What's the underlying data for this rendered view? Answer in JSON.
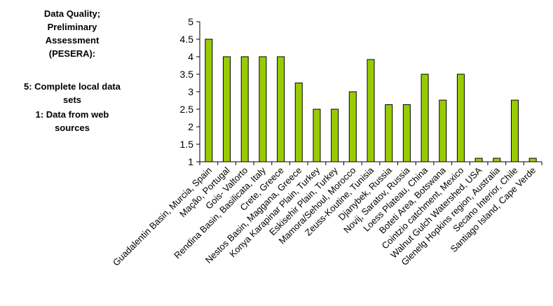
{
  "side_note": {
    "lines": [
      "Data Quality;",
      "Preliminary",
      "Assessment",
      "(PESERA):",
      "",
      "5: Complete local data",
      "sets",
      "1: Data from web",
      "sources"
    ]
  },
  "chart_data": {
    "type": "bar",
    "title": "",
    "xlabel": "",
    "ylabel": "",
    "ylim": [
      1,
      5
    ],
    "yticks": [
      "1",
      "1.5",
      "2",
      "2.5",
      "3",
      "3.5",
      "4",
      "4.5",
      "5"
    ],
    "grid": false,
    "legend": "none",
    "bar_color": "#99cc00",
    "categories": [
      "Guadalentin Basin, Murcia, Spain",
      "Mação, Portugal",
      "Gois- Valtorto",
      "Rendina Basin, Basilicata, Italy",
      "Crete, Greece",
      "Nestos Basin, Maggana, Greece",
      "Konya Karapinar Plain, Turkey",
      "Eskisehir Plain, Turkey",
      "Mamora/Sehoul, Morocco",
      "Zeuss-Koutine, Tunisia",
      "Djanybek, Russia",
      "Novij, Saratov, Russia",
      "Loess Plateau, China",
      "Boteti Area, Botswana",
      "Cointzio catchment, Mexico",
      "Walnut Gulch Watershed, USA",
      "Glenelg Hopkins region, Australia",
      "Secano Interior, Chile",
      "Santiago Island, Cape Verde"
    ],
    "values": [
      4.5,
      4.0,
      4.0,
      4.0,
      4.0,
      3.25,
      2.5,
      2.5,
      3.0,
      3.92,
      2.63,
      2.63,
      3.5,
      2.76,
      3.5,
      1.1,
      1.1,
      2.76,
      1.1
    ]
  }
}
